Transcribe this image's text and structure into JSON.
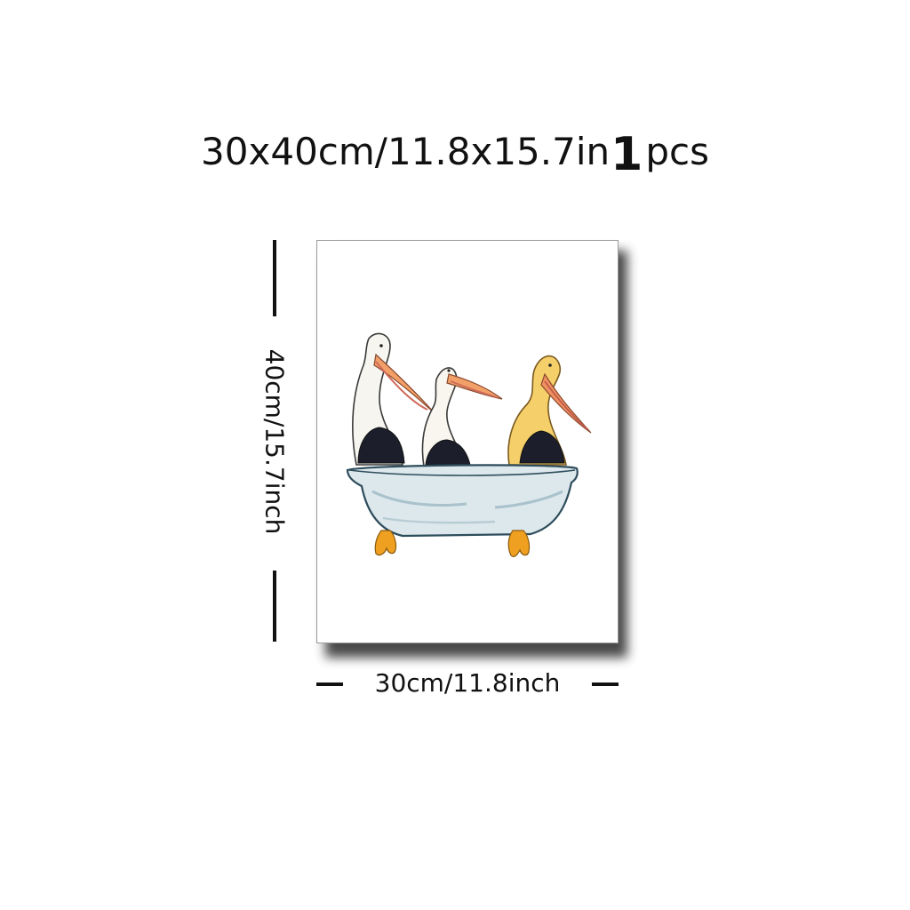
{
  "product": {
    "size_text": "30x40cm/11.8x15.7in",
    "quantity": "1",
    "unit": "pcs"
  },
  "dimensions": {
    "height_label": "40cm/15.7inch",
    "width_label": "30cm/11.8inch"
  },
  "colors": {
    "text": "#111111",
    "canvas_border": "#9a9a9a",
    "tub": "#dde8ec",
    "tub_outline": "#2e4d5c",
    "feet": "#f0a020",
    "pelican_wing": "#1c1f2b",
    "beak": "#f2a068",
    "yellow_pelican": "#f5d06a"
  },
  "artwork": {
    "subject_icon": "pelicans-in-bathtub-illustration"
  }
}
